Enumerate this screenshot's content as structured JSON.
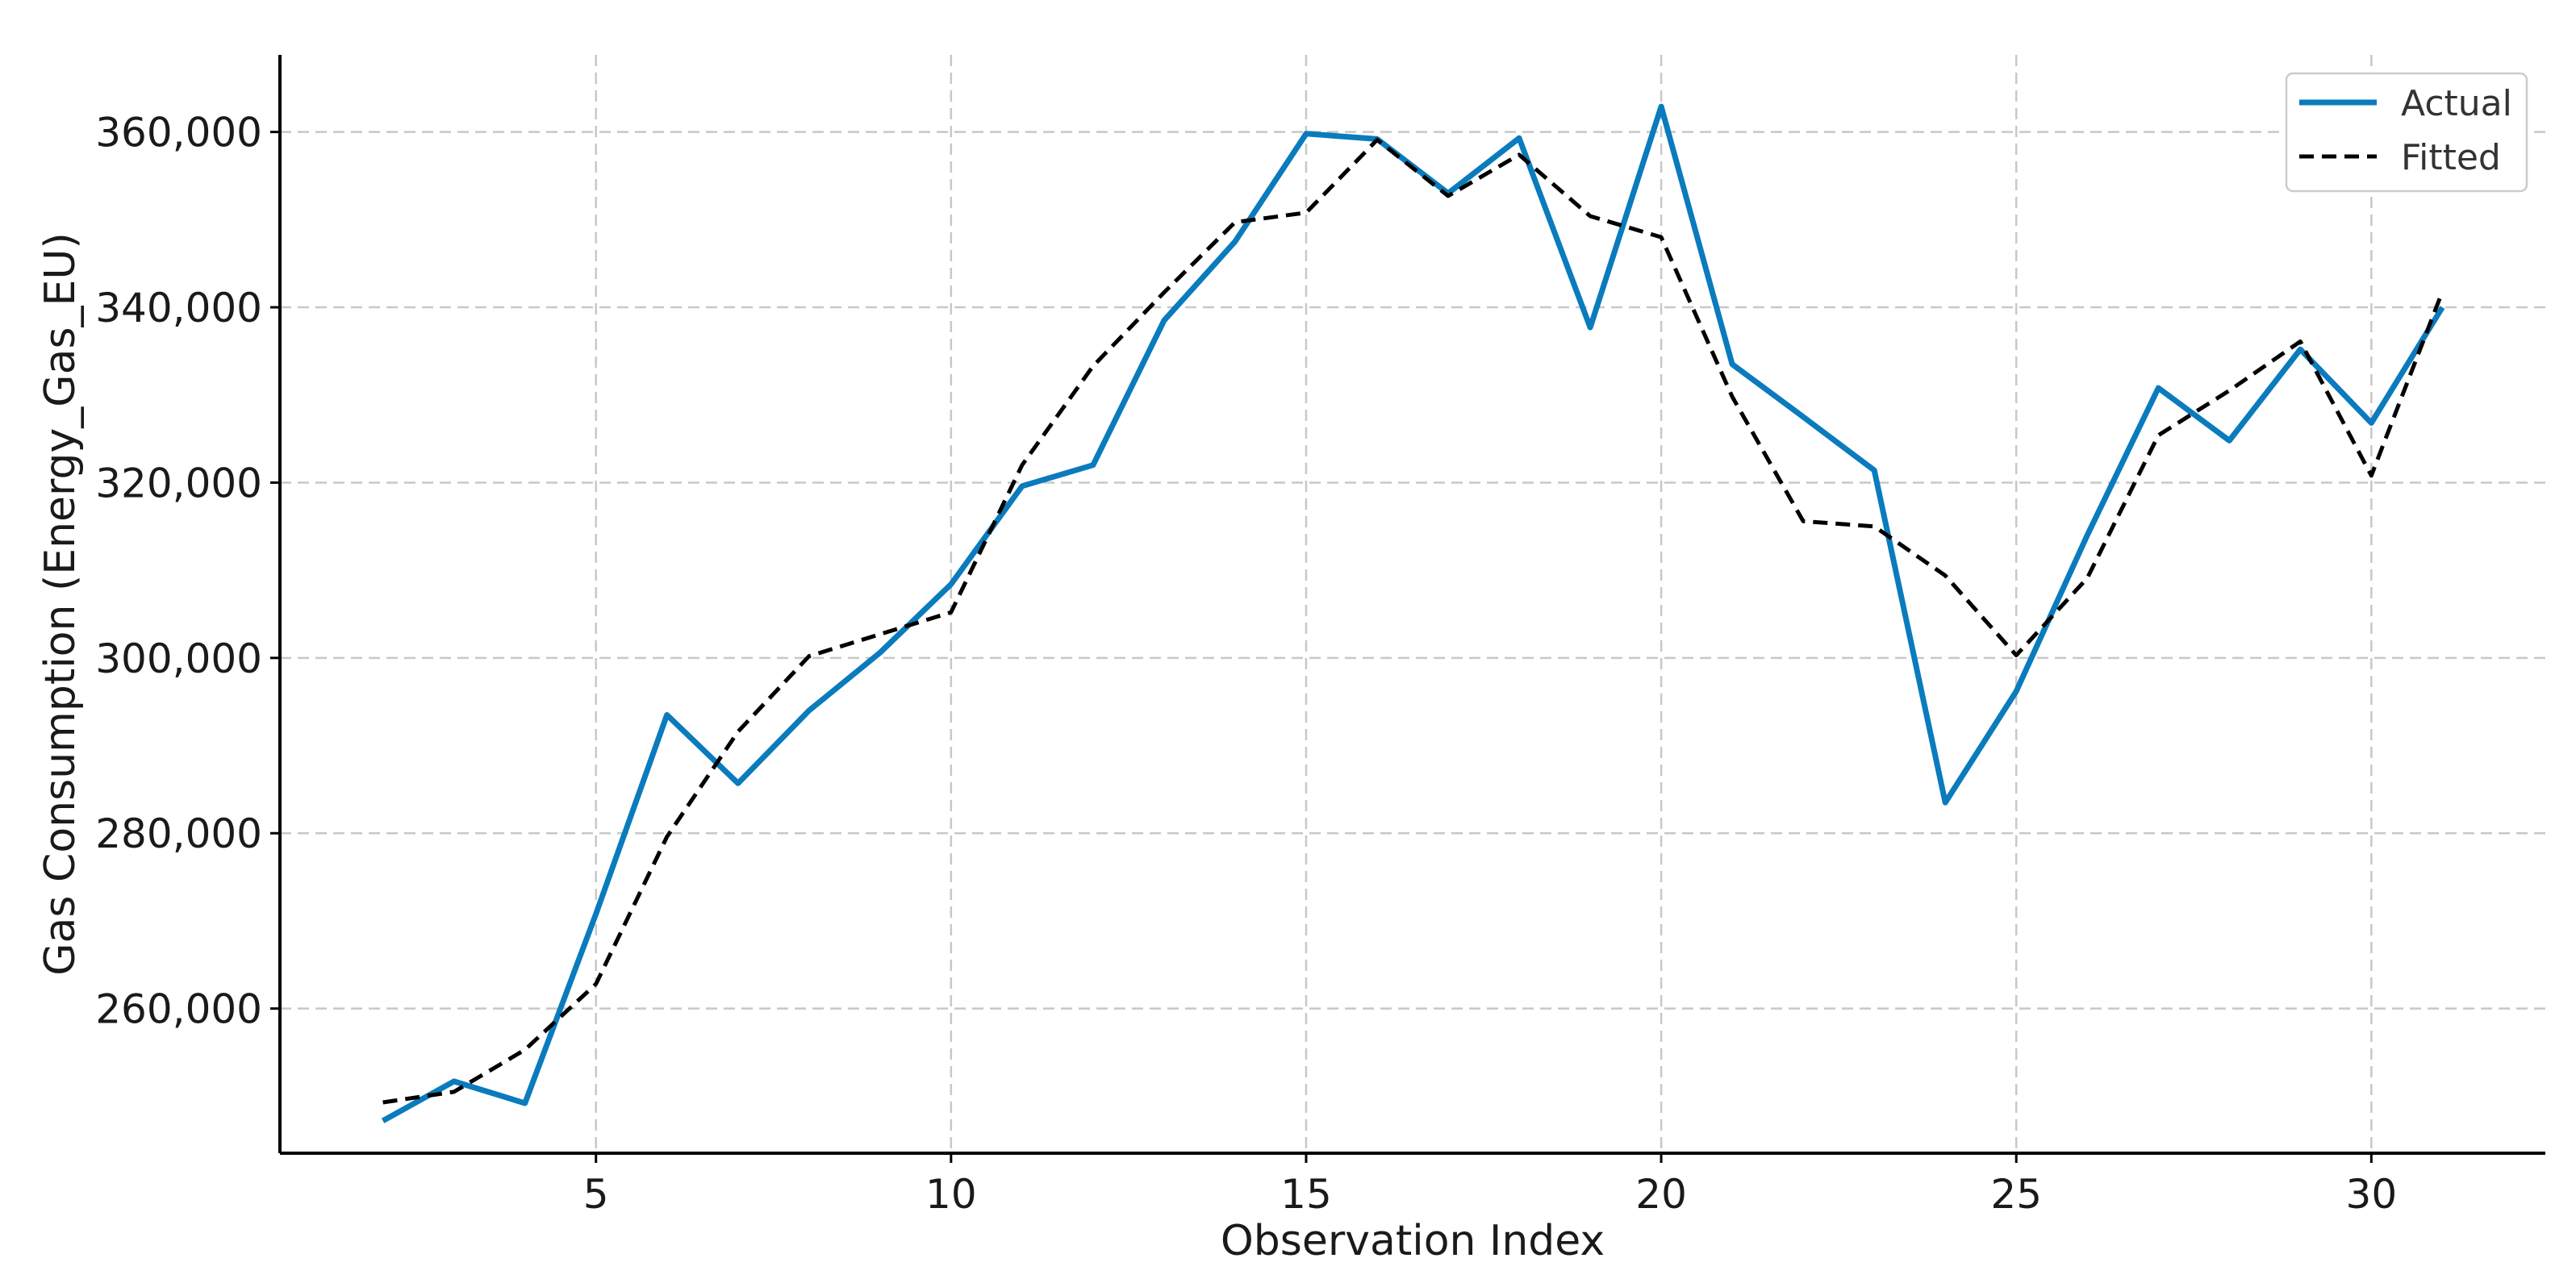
{
  "chart_data": {
    "type": "line",
    "title": "",
    "xlabel": "Observation Index",
    "ylabel": "Gas Consumption (Energy_Gas_EU)",
    "xlim": [
      0.55,
      32.45
    ],
    "ylim": [
      243500,
      368800
    ],
    "x_ticks": [
      5,
      10,
      15,
      20,
      25,
      30
    ],
    "x_tick_labels": [
      "5",
      "10",
      "15",
      "20",
      "25",
      "30"
    ],
    "y_ticks": [
      260000,
      280000,
      300000,
      320000,
      340000,
      360000
    ],
    "y_tick_labels": [
      "260,000",
      "280,000",
      "300,000",
      "320,000",
      "340,000",
      "360,000"
    ],
    "grid": true,
    "legend_position": "top-right",
    "x": [
      2,
      3,
      4,
      5,
      6,
      7,
      8,
      9,
      10,
      11,
      12,
      13,
      14,
      15,
      16,
      17,
      18,
      19,
      20,
      21,
      22,
      23,
      24,
      25,
      26,
      27,
      28,
      29,
      30,
      31
    ],
    "series": [
      {
        "name": "Actual",
        "color": "#0a7bbd",
        "style": "solid",
        "values": [
          247200,
          251700,
          249200,
          270800,
          293500,
          285700,
          294000,
          300600,
          308400,
          319600,
          322000,
          338500,
          347500,
          359800,
          359200,
          353000,
          359300,
          337700,
          362900,
          333500,
          327500,
          321400,
          283500,
          296200,
          314000,
          330800,
          324800,
          335200,
          326800,
          340000
        ]
      },
      {
        "name": "Fitted",
        "color": "#000000",
        "style": "dashed",
        "values": [
          249300,
          250500,
          255300,
          262800,
          279600,
          291600,
          300200,
          302700,
          305200,
          322000,
          333300,
          341700,
          349700,
          350800,
          359100,
          352700,
          357400,
          350400,
          348000,
          329800,
          315600,
          315000,
          309400,
          300300,
          309100,
          325400,
          330500,
          336100,
          320800,
          341800
        ]
      }
    ]
  }
}
